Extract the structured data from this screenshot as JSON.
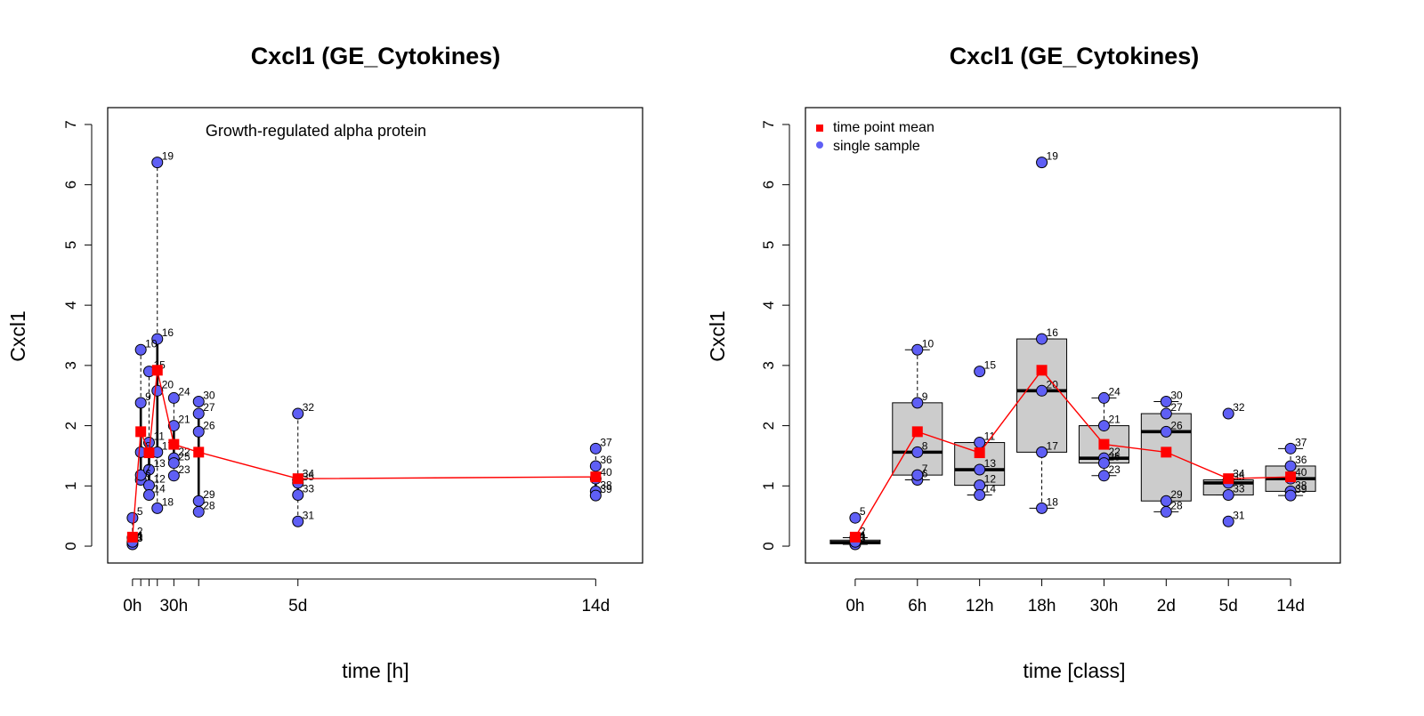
{
  "chart_data": [
    {
      "type": "scatter",
      "title": "Cxcl1 (GE_Cytokines)",
      "subtitle": "Growth-regulated alpha protein",
      "xlabel": "time [h]",
      "ylabel": "Cxcl1",
      "xlim": [
        -18,
        370
      ],
      "ylim": [
        -0.28,
        7.28
      ],
      "yticks": [
        0,
        1,
        2,
        3,
        4,
        5,
        6,
        7
      ],
      "xticks": [
        {
          "x": 0,
          "label": "0h"
        },
        {
          "x": 6,
          "label": ""
        },
        {
          "x": 12,
          "label": ""
        },
        {
          "x": 18,
          "label": ""
        },
        {
          "x": 30,
          "label": "30h"
        },
        {
          "x": 48,
          "label": ""
        },
        {
          "x": 120,
          "label": "5d"
        },
        {
          "x": 336,
          "label": "14d"
        }
      ],
      "points": [
        {
          "id": "1",
          "x": 0,
          "y": 0.05
        },
        {
          "id": "2",
          "x": 0,
          "y": 0.14
        },
        {
          "id": "3",
          "x": 0,
          "y": 0.03
        },
        {
          "id": "4",
          "x": 0,
          "y": 0.07
        },
        {
          "id": "5",
          "x": 0,
          "y": 0.47
        },
        {
          "id": "6",
          "x": 6,
          "y": 1.1
        },
        {
          "id": "7",
          "x": 6,
          "y": 1.18
        },
        {
          "id": "8",
          "x": 6,
          "y": 1.56
        },
        {
          "id": "9",
          "x": 6,
          "y": 2.38
        },
        {
          "id": "10",
          "x": 6,
          "y": 3.26
        },
        {
          "id": "11",
          "x": 12,
          "y": 1.72
        },
        {
          "id": "12",
          "x": 12,
          "y": 1.01
        },
        {
          "id": "13",
          "x": 12,
          "y": 1.27
        },
        {
          "id": "14",
          "x": 12,
          "y": 0.85
        },
        {
          "id": "15",
          "x": 12,
          "y": 2.9
        },
        {
          "id": "16",
          "x": 18,
          "y": 3.44
        },
        {
          "id": "17",
          "x": 18,
          "y": 1.56
        },
        {
          "id": "18",
          "x": 18,
          "y": 0.63
        },
        {
          "id": "19",
          "x": 18,
          "y": 6.37
        },
        {
          "id": "20",
          "x": 18,
          "y": 2.58
        },
        {
          "id": "21",
          "x": 30,
          "y": 2.0
        },
        {
          "id": "22",
          "x": 30,
          "y": 1.46
        },
        {
          "id": "23",
          "x": 30,
          "y": 1.17
        },
        {
          "id": "24",
          "x": 30,
          "y": 2.46
        },
        {
          "id": "25",
          "x": 30,
          "y": 1.38
        },
        {
          "id": "26",
          "x": 48,
          "y": 1.9
        },
        {
          "id": "27",
          "x": 48,
          "y": 2.2
        },
        {
          "id": "28",
          "x": 48,
          "y": 0.57
        },
        {
          "id": "29",
          "x": 48,
          "y": 0.75
        },
        {
          "id": "30",
          "x": 48,
          "y": 2.4
        },
        {
          "id": "31",
          "x": 120,
          "y": 0.41
        },
        {
          "id": "32",
          "x": 120,
          "y": 2.2
        },
        {
          "id": "33",
          "x": 120,
          "y": 0.85
        },
        {
          "id": "34",
          "x": 120,
          "y": 1.1
        },
        {
          "id": "35",
          "x": 120,
          "y": 1.05
        },
        {
          "id": "36",
          "x": 336,
          "y": 1.33
        },
        {
          "id": "37",
          "x": 336,
          "y": 1.62
        },
        {
          "id": "38",
          "x": 336,
          "y": 0.91
        },
        {
          "id": "39",
          "x": 336,
          "y": 0.84
        },
        {
          "id": "40",
          "x": 336,
          "y": 1.12
        }
      ],
      "means": [
        {
          "x": 0,
          "y": 0.15
        },
        {
          "x": 6,
          "y": 1.9
        },
        {
          "x": 12,
          "y": 1.55
        },
        {
          "x": 18,
          "y": 2.92
        },
        {
          "x": 30,
          "y": 1.69
        },
        {
          "x": 48,
          "y": 1.56
        },
        {
          "x": 120,
          "y": 1.12
        },
        {
          "x": 336,
          "y": 1.15
        }
      ],
      "colors": {
        "point": "#5f5ff5",
        "mean": "#ff0000"
      }
    },
    {
      "type": "boxplot",
      "title": "Cxcl1 (GE_Cytokines)",
      "xlabel": "time [class]",
      "ylabel": "Cxcl1",
      "ylim": [
        -0.28,
        7.28
      ],
      "yticks": [
        0,
        1,
        2,
        3,
        4,
        5,
        6,
        7
      ],
      "categories": [
        "0h",
        "6h",
        "12h",
        "18h",
        "30h",
        "2d",
        "5d",
        "14d"
      ],
      "boxes": [
        {
          "lower": 0.03,
          "q1": 0.04,
          "median": 0.06,
          "q3": 0.1,
          "upper": 0.14
        },
        {
          "lower": 1.1,
          "q1": 1.18,
          "median": 1.56,
          "q3": 2.38,
          "upper": 3.26
        },
        {
          "lower": 0.85,
          "q1": 1.01,
          "median": 1.27,
          "q3": 1.72,
          "upper": 1.72
        },
        {
          "lower": 0.63,
          "q1": 1.56,
          "median": 2.58,
          "q3": 3.44,
          "upper": 3.44
        },
        {
          "lower": 1.17,
          "q1": 1.38,
          "median": 1.46,
          "q3": 2.0,
          "upper": 2.46
        },
        {
          "lower": 0.57,
          "q1": 0.75,
          "median": 1.9,
          "q3": 2.2,
          "upper": 2.4
        },
        {
          "lower": 0.85,
          "q1": 0.85,
          "median": 1.05,
          "q3": 1.1,
          "upper": 1.1
        },
        {
          "lower": 0.84,
          "q1": 0.91,
          "median": 1.12,
          "q3": 1.33,
          "upper": 1.62
        }
      ],
      "legend": {
        "position": "top-left",
        "entries": [
          "time point mean",
          "single sample"
        ]
      },
      "colors": {
        "box": "#cccccc",
        "point": "#5f5ff5",
        "mean": "#ff0000"
      }
    }
  ]
}
